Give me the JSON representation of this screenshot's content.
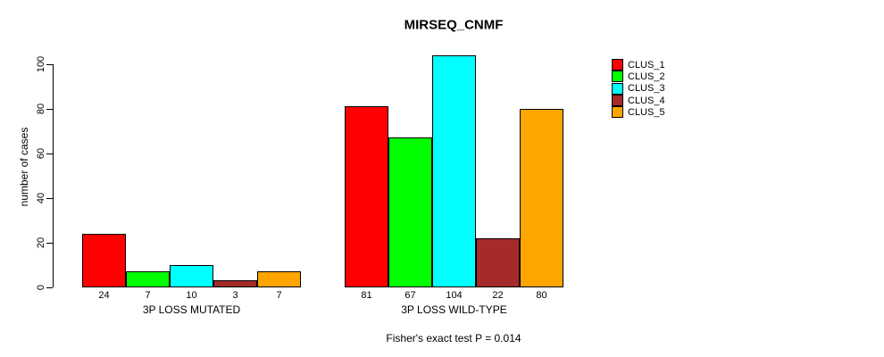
{
  "title": "MIRSEQ_CNMF",
  "chart_data": {
    "type": "bar",
    "title": "MIRSEQ_CNMF",
    "xlabel": "",
    "ylabel": "number of cases",
    "annotation": "Fisher's exact test P = 0.014",
    "categories": [
      "3P LOSS MUTATED",
      "3P LOSS WILD-TYPE"
    ],
    "series": [
      {
        "name": "CLUS_1",
        "color": "#ff0000",
        "values": [
          24,
          81
        ]
      },
      {
        "name": "CLUS_2",
        "color": "#00ff00",
        "values": [
          7,
          67
        ]
      },
      {
        "name": "CLUS_3",
        "color": "#00ffff",
        "values": [
          10,
          104
        ]
      },
      {
        "name": "CLUS_4",
        "color": "#a52a2a",
        "values": [
          3,
          22
        ]
      },
      {
        "name": "CLUS_5",
        "color": "#ffa500",
        "values": [
          7,
          80
        ]
      }
    ],
    "bar_value_labels": [
      [
        "24",
        "7",
        "10",
        "3",
        "7"
      ],
      [
        "81",
        "67",
        "104",
        "22",
        "80"
      ]
    ],
    "yticks": [
      0,
      20,
      40,
      60,
      80,
      100
    ],
    "ylim": [
      0,
      105
    ],
    "grid": false,
    "legend_position": "right",
    "bar_border_color": "#000000",
    "background_color": "#ffffff"
  }
}
